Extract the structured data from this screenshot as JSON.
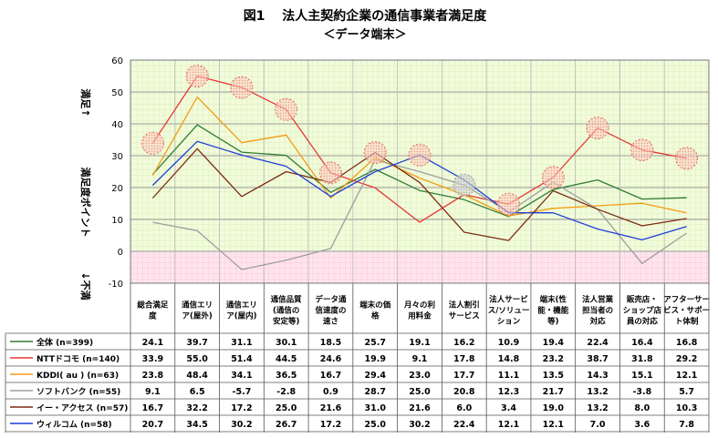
{
  "title": "図1　 法人主契約企業の通信事業者満足度",
  "subtitle": "＜データ端末＞",
  "y_label_top": "満足↑",
  "y_label_mid": "満足度ポイント",
  "y_label_bottom": "↓不満",
  "chart_data": {
    "type": "line",
    "title": "図1　 法人主契約企業の通信事業者満足度",
    "subtitle": "＜データ端末＞",
    "ylabel": "満足度ポイント",
    "ylim": [
      -10,
      60
    ],
    "yticks": [
      -10,
      0,
      10,
      20,
      30,
      40,
      50,
      60
    ],
    "grid": true,
    "legend": "table-left",
    "categories": [
      "総合満足度",
      "通信エリア(屋外)",
      "通信エリア(屋内)",
      "通信品質(通信の安定等)",
      "データ通信速度の速さ",
      "端末の価格",
      "月々の利用料金",
      "法人割引サービス",
      "法人サービス/ソリューション",
      "端末(性能・機能等)",
      "法人営業担当者の対応",
      "販売店・ショップ店員の対応",
      "アフターサービス・サポート体制"
    ],
    "category_labels": [
      [
        "総合満足",
        "度"
      ],
      [
        "通信エリ",
        "ア(屋外)"
      ],
      [
        "通信エリ",
        "ア(屋内)"
      ],
      [
        "通信品質",
        "(通信の",
        "安定等)"
      ],
      [
        "データ通",
        "信速度の",
        "速さ"
      ],
      [
        "端末の価",
        "格"
      ],
      [
        "月々の利",
        "用料金"
      ],
      [
        "法人割引",
        "サービス"
      ],
      [
        "法人サービ",
        "ス/ソリュー",
        "ション"
      ],
      [
        "端末(性",
        "能・機能",
        "等)"
      ],
      [
        "法人営業",
        "担当者の",
        "対応"
      ],
      [
        "販売店・",
        "ショップ店",
        "員の対応"
      ],
      [
        "アフターサー",
        "ビス・サポー",
        "ト体制"
      ]
    ],
    "series": [
      {
        "name": "全体 (n=399)",
        "color": "#2e7d32",
        "values": [
          24.1,
          39.7,
          31.1,
          30.1,
          18.5,
          25.7,
          19.1,
          16.2,
          10.9,
          19.4,
          22.4,
          16.4,
          16.8
        ]
      },
      {
        "name": "NTTドコモ (n=140)",
        "color": "#e53935",
        "values": [
          33.9,
          55.0,
          51.4,
          44.5,
          24.6,
          19.9,
          9.1,
          17.8,
          14.8,
          23.2,
          38.7,
          31.8,
          29.2
        ]
      },
      {
        "name": "KDDI( au ) (n=63)",
        "color": "#f39c12",
        "values": [
          23.8,
          48.4,
          34.1,
          36.5,
          16.7,
          29.4,
          23.0,
          17.7,
          11.1,
          13.5,
          14.3,
          15.1,
          12.1
        ]
      },
      {
        "name": "ソフトバンク (n=55)",
        "color": "#9e9e9e",
        "values": [
          9.1,
          6.5,
          -5.7,
          -2.8,
          0.9,
          28.7,
          25.0,
          20.8,
          12.3,
          21.7,
          13.2,
          -3.8,
          5.7
        ]
      },
      {
        "name": "イー・アクセス (n=57)",
        "color": "#7b2c12",
        "values": [
          16.7,
          32.2,
          17.2,
          25.0,
          21.6,
          31.0,
          21.6,
          6.0,
          3.4,
          19.0,
          13.2,
          8.0,
          10.3
        ]
      },
      {
        "name": "ウィルコム (n=58)",
        "color": "#1e3fd8",
        "values": [
          20.7,
          34.5,
          30.2,
          26.7,
          17.2,
          25.0,
          30.2,
          22.4,
          12.1,
          12.1,
          7.0,
          3.6,
          7.8
        ]
      }
    ],
    "highlights": [
      {
        "series": 1,
        "index": 0
      },
      {
        "series": 1,
        "index": 1
      },
      {
        "series": 1,
        "index": 2
      },
      {
        "series": 1,
        "index": 3
      },
      {
        "series": 1,
        "index": 4
      },
      {
        "series": 1,
        "index": 8
      },
      {
        "series": 1,
        "index": 9
      },
      {
        "series": 1,
        "index": 10
      },
      {
        "series": 1,
        "index": 11
      },
      {
        "series": 1,
        "index": 12
      },
      {
        "series": 4,
        "index": 5
      },
      {
        "series": 5,
        "index": 6
      },
      {
        "series": 3,
        "index": 7
      }
    ]
  }
}
